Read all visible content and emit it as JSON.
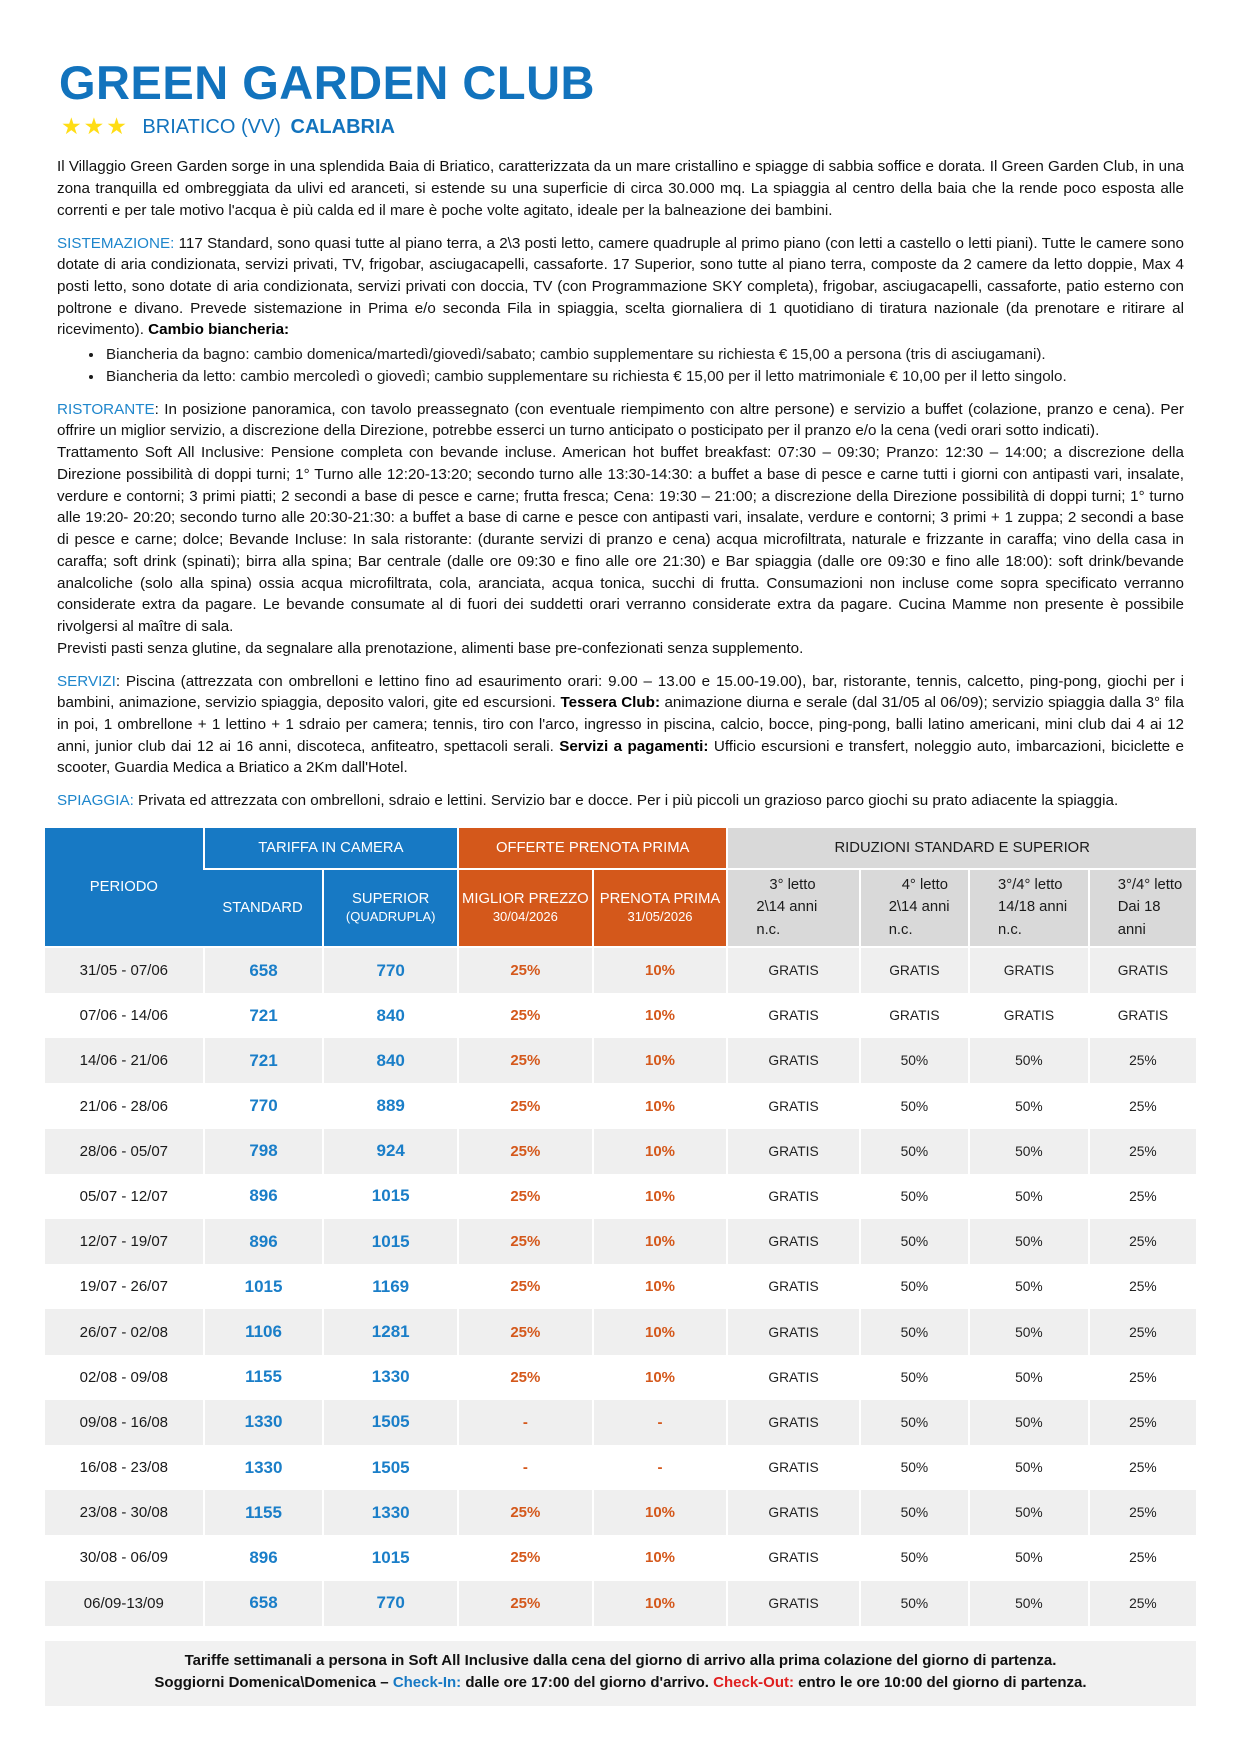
{
  "colors": {
    "accent_blue": "#1779c4",
    "accent_orange": "#d4581b",
    "star_yellow": "#ffdd15",
    "checkin_blue": "#1779c4",
    "checkout_red": "#e02020",
    "stripe_gray": "#efefef",
    "header_gray": "#d9d9d9"
  },
  "header": {
    "title": "GREEN GARDEN CLUB",
    "stars": "★★★",
    "location": "BRIATICO (VV)",
    "region": "CALABRIA"
  },
  "paragraphs": {
    "intro": [
      {
        "t": "Il Villaggio Green Garden sorge in una splendida Baia di Briatico, caratterizzata da un mare cristallino e spiagge di sabbia soffice e dorata. Il Green Garden Club, in una zona tranquilla ed ombreggiata da ulivi ed aranceti, si estende su una superficie di circa 30.000 mq. La spiaggia al centro della baia che la rende poco esposta alle correnti e per tale motivo l'acqua è più calda ed il mare è poche volte agitato, ideale per la balneazione dei bambini.",
        "s": "plain"
      }
    ],
    "sistemazione": [
      {
        "t": "SISTEMAZIONE:",
        "s": "label"
      },
      {
        "t": " 117 Standard, sono quasi tutte al piano terra, a 2\\3 posti letto, camere quadruple al primo piano (con letti a castello o letti piani). Tutte le camere sono dotate di aria condizionata, servizi privati, TV, frigobar, asciugacapelli, cassaforte. 17 Superior, sono tutte al piano terra, composte da 2 camere da letto doppie, Max 4 posti letto, sono dotate di aria condizionata, servizi privati con doccia, TV (con Programmazione SKY completa), frigobar, asciugacapelli, cassaforte, patio esterno con poltrone e divano. Prevede sistemazione in Prima e/o seconda Fila in spiaggia, scelta giornaliera di 1 quotidiano di tiratura nazionale (da prenotare e ritirare al ricevimento). ",
        "s": "plain"
      },
      {
        "t": "Cambio biancheria:",
        "s": "bold"
      }
    ],
    "bullets": [
      "Biancheria da bagno: cambio domenica/martedì/giovedì/sabato; cambio supplementare su richiesta € 15,00 a persona (tris di asciugamani).",
      "Biancheria da letto: cambio mercoledì o giovedì; cambio supplementare su richiesta € 15,00 per il letto matrimoniale € 10,00 per il letto singolo."
    ],
    "ristorante_p1": [
      {
        "t": "RISTORANTE",
        "s": "label"
      },
      {
        "t": ": In posizione panoramica, con tavolo preassegnato (con eventuale riempimento con altre persone) e servizio a buffet (colazione, pranzo e cena). Per offrire un miglior servizio, a discrezione della Direzione, potrebbe esserci un turno anticipato o posticipato per il pranzo e/o la cena (vedi orari sotto indicati).",
        "s": "plain"
      }
    ],
    "ristorante_p2": [
      {
        "t": "Trattamento Soft All Inclusive: Pensione completa con bevande incluse. American hot buffet breakfast: 07:30 – 09:30; Pranzo: 12:30 – 14:00; a discrezione della Direzione possibilità di doppi turni; 1° Turno alle 12:20-13:20; secondo turno alle 13:30-14:30: a buffet a base di pesce e carne tutti i giorni con antipasti vari, insalate, verdure e contorni; 3 primi piatti; 2 secondi a base di pesce e carne; frutta fresca; Cena: 19:30 – 21:00; a discrezione della Direzione possibilità di doppi turni; 1° turno alle 19:20- 20:20; secondo turno alle 20:30-21:30: a buffet a base di carne e pesce con antipasti vari, insalate, verdure e contorni; 3 primi + 1 zuppa; 2 secondi a base di pesce e carne; dolce; Bevande Incluse: In sala ristorante: (durante servizi di pranzo e cena) acqua microfiltrata, naturale e frizzante in caraffa; vino della casa in caraffa; soft drink (spinati); birra alla spina; Bar centrale (dalle ore 09:30 e fino alle ore 21:30) e Bar spiaggia (dalle ore 09:30 e fino alle 18:00): soft drink/bevande analcoliche (solo alla spina) ossia acqua microfiltrata, cola, aranciata, acqua tonica, succhi di frutta. Consumazioni non incluse come sopra specificato verranno considerate extra da pagare. Le bevande consumate al di fuori dei suddetti orari verranno considerate extra da pagare. Cucina Mamme non presente è possibile rivolgersi al maître di sala.",
        "s": "plain"
      }
    ],
    "ristorante_p3": [
      {
        "t": "Previsti pasti senza glutine, da segnalare alla prenotazione, alimenti base pre-confezionati senza supplemento.",
        "s": "plain"
      }
    ],
    "servizi": [
      {
        "t": "SERVIZI",
        "s": "label"
      },
      {
        "t": ": Piscina (attrezzata con ombrelloni e lettino fino ad esaurimento orari: 9.00 – 13.00 e 15.00-19.00), bar, ristorante, tennis, calcetto, ping-pong, giochi per i bambini, animazione, servizio spiaggia, deposito valori, gite ed escursioni. ",
        "s": "plain"
      },
      {
        "t": "Tessera Club:",
        "s": "bold"
      },
      {
        "t": " animazione diurna e serale (dal 31/05 al 06/09); servizio spiaggia dalla 3° fila in poi, 1 ombrellone + 1 lettino + 1 sdraio per camera; tennis, tiro con l'arco, ingresso in piscina, calcio, bocce, ping-pong, balli latino americani, mini club dai 4 ai 12 anni, junior club dai 12 ai 16 anni, discoteca, anfiteatro, spettacoli serali. ",
        "s": "plain"
      },
      {
        "t": "Servizi a pagamenti:",
        "s": "bold"
      },
      {
        "t": " Ufficio escursioni e transfert, noleggio auto, imbarcazioni, biciclette e scooter, Guardia Medica a Briatico a 2Km dall'Hotel.",
        "s": "plain"
      }
    ],
    "spiaggia": [
      {
        "t": "SPIAGGIA:",
        "s": "label"
      },
      {
        "t": " Privata ed attrezzata con ombrelloni, sdraio e lettini. Servizio bar e docce. Per i più piccoli un grazioso parco giochi su prato adiacente la spiaggia.",
        "s": "plain"
      }
    ]
  },
  "table": {
    "header": {
      "periodo": "PERIODO",
      "tariffa_group": "TARIFFA IN CAMERA",
      "offerte_group": "OFFERTE PRENOTA PRIMA",
      "riduzioni_group": "RIDUZIONI STANDARD E SUPERIOR",
      "standard": "STANDARD",
      "superior": "SUPERIOR",
      "superior_sub": "(QUADRUPLA)",
      "miglior": "MIGLIOR PREZZO",
      "miglior_sub": "30/04/2026",
      "prenota": "PRENOTA PRIMA",
      "prenota_sub": "31/05/2026",
      "r1": [
        "3° letto",
        "2\\14 anni",
        "n.c."
      ],
      "r2": [
        "4° letto",
        "2\\14 anni",
        "n.c."
      ],
      "r3": [
        "3°/4° letto",
        "14/18 anni",
        "n.c."
      ],
      "r4": [
        "3°/4° letto",
        "Dai 18",
        "anni"
      ]
    },
    "rows": [
      {
        "periodo": "31/05 - 07/06",
        "standard": "658",
        "superior": "770",
        "miglior": "25%",
        "prenota": "10%",
        "r1": "GRATIS",
        "r2": "GRATIS",
        "r3": "GRATIS",
        "r4": "GRATIS"
      },
      {
        "periodo": "07/06 - 14/06",
        "standard": "721",
        "superior": "840",
        "miglior": "25%",
        "prenota": "10%",
        "r1": "GRATIS",
        "r2": "GRATIS",
        "r3": "GRATIS",
        "r4": "GRATIS"
      },
      {
        "periodo": "14/06 - 21/06",
        "standard": "721",
        "superior": "840",
        "miglior": "25%",
        "prenota": "10%",
        "r1": "GRATIS",
        "r2": "50%",
        "r3": "50%",
        "r4": "25%"
      },
      {
        "periodo": "21/06 - 28/06",
        "standard": "770",
        "superior": "889",
        "miglior": "25%",
        "prenota": "10%",
        "r1": "GRATIS",
        "r2": "50%",
        "r3": "50%",
        "r4": "25%"
      },
      {
        "periodo": "28/06 - 05/07",
        "standard": "798",
        "superior": "924",
        "miglior": "25%",
        "prenota": "10%",
        "r1": "GRATIS",
        "r2": "50%",
        "r3": "50%",
        "r4": "25%"
      },
      {
        "periodo": "05/07 - 12/07",
        "standard": "896",
        "superior": "1015",
        "miglior": "25%",
        "prenota": "10%",
        "r1": "GRATIS",
        "r2": "50%",
        "r3": "50%",
        "r4": "25%"
      },
      {
        "periodo": "12/07 - 19/07",
        "standard": "896",
        "superior": "1015",
        "miglior": "25%",
        "prenota": "10%",
        "r1": "GRATIS",
        "r2": "50%",
        "r3": "50%",
        "r4": "25%"
      },
      {
        "periodo": "19/07 - 26/07",
        "standard": "1015",
        "superior": "1169",
        "miglior": "25%",
        "prenota": "10%",
        "r1": "GRATIS",
        "r2": "50%",
        "r3": "50%",
        "r4": "25%"
      },
      {
        "periodo": "26/07 - 02/08",
        "standard": "1106",
        "superior": "1281",
        "miglior": "25%",
        "prenota": "10%",
        "r1": "GRATIS",
        "r2": "50%",
        "r3": "50%",
        "r4": "25%"
      },
      {
        "periodo": "02/08 - 09/08",
        "standard": "1155",
        "superior": "1330",
        "miglior": "25%",
        "prenota": "10%",
        "r1": "GRATIS",
        "r2": "50%",
        "r3": "50%",
        "r4": "25%"
      },
      {
        "periodo": "09/08 - 16/08",
        "standard": "1330",
        "superior": "1505",
        "miglior": "-",
        "prenota": "-",
        "r1": "GRATIS",
        "r2": "50%",
        "r3": "50%",
        "r4": "25%"
      },
      {
        "periodo": "16/08 - 23/08",
        "standard": "1330",
        "superior": "1505",
        "miglior": "-",
        "prenota": "-",
        "r1": "GRATIS",
        "r2": "50%",
        "r3": "50%",
        "r4": "25%"
      },
      {
        "periodo": "23/08 - 30/08",
        "standard": "1155",
        "superior": "1330",
        "miglior": "25%",
        "prenota": "10%",
        "r1": "GRATIS",
        "r2": "50%",
        "r3": "50%",
        "r4": "25%"
      },
      {
        "periodo": "30/08 - 06/09",
        "standard": "896",
        "superior": "1015",
        "miglior": "25%",
        "prenota": "10%",
        "r1": "GRATIS",
        "r2": "50%",
        "r3": "50%",
        "r4": "25%"
      },
      {
        "periodo": "06/09-13/09",
        "standard": "658",
        "superior": "770",
        "miglior": "25%",
        "prenota": "10%",
        "r1": "GRATIS",
        "r2": "50%",
        "r3": "50%",
        "r4": "25%"
      }
    ]
  },
  "footer": {
    "line1": "Tariffe settimanali a persona in Soft All Inclusive dalla cena del giorno di arrivo alla prima colazione del giorno di partenza.",
    "line2": [
      {
        "t": "Soggiorni Domenica\\Domenica – ",
        "s": "plain"
      },
      {
        "t": "Check-In:",
        "s": "blue"
      },
      {
        "t": " dalle ore 17:00 del giorno d'arrivo. ",
        "s": "plain"
      },
      {
        "t": "Check-Out:",
        "s": "red"
      },
      {
        "t": " entro le ore 10:00 del giorno di partenza.",
        "s": "plain"
      }
    ]
  }
}
